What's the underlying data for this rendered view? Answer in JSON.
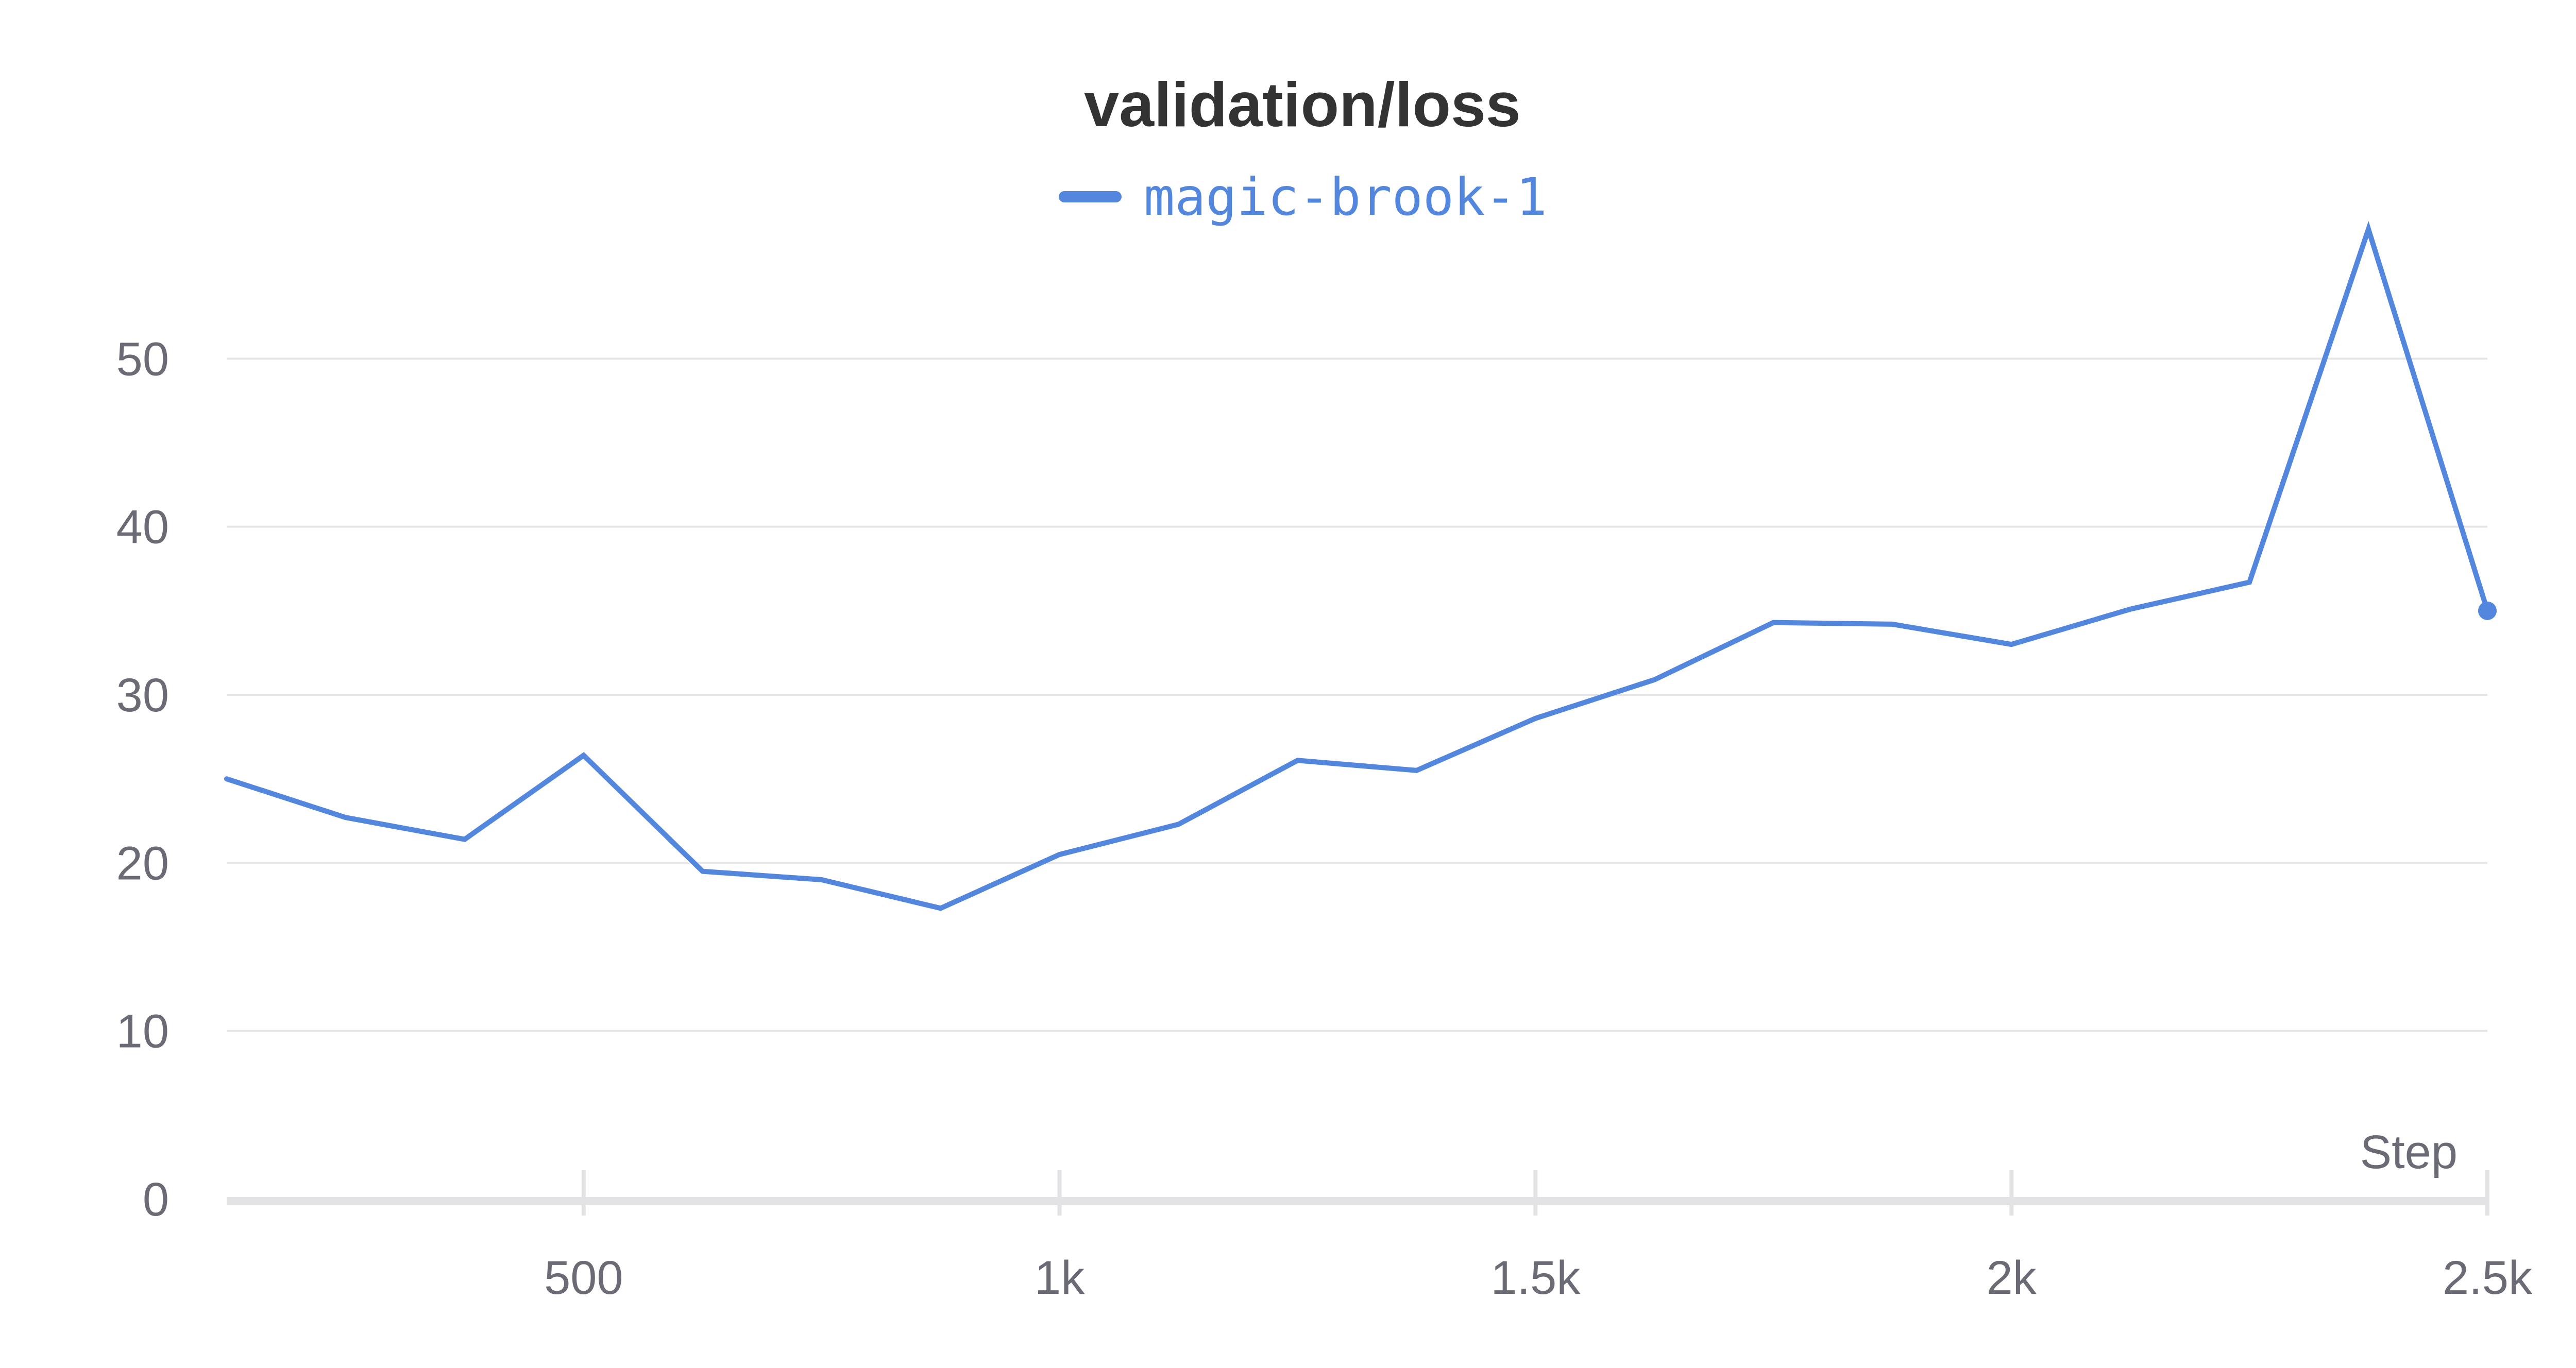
{
  "chart_data": {
    "type": "line",
    "title": "validation/loss",
    "xlabel": "Step",
    "ylabel": "",
    "xlim": [
      125,
      2500
    ],
    "ylim": [
      0,
      60
    ],
    "x_ticks": [
      500,
      1000,
      1500,
      2000,
      2500
    ],
    "x_tick_labels": [
      "500",
      "1k",
      "1.5k",
      "2k",
      "2.5k"
    ],
    "y_ticks": [
      0,
      10,
      20,
      30,
      40,
      50
    ],
    "y_tick_labels": [
      "0",
      "10",
      "20",
      "30",
      "40",
      "50"
    ],
    "grid": true,
    "legend_position": "top-center",
    "series": [
      {
        "name": "magic-brook-1",
        "color": "#5387dd",
        "x": [
          125,
          250,
          375,
          500,
          625,
          750,
          875,
          1000,
          1125,
          1250,
          1375,
          1500,
          1625,
          1750,
          1875,
          2000,
          2125,
          2250,
          2375,
          2500
        ],
        "y": [
          25.0,
          22.7,
          21.4,
          26.4,
          19.5,
          19.0,
          17.3,
          20.5,
          22.3,
          26.1,
          25.5,
          28.6,
          30.9,
          34.3,
          34.2,
          33.0,
          35.1,
          36.7,
          57.7,
          35.0
        ]
      }
    ]
  }
}
